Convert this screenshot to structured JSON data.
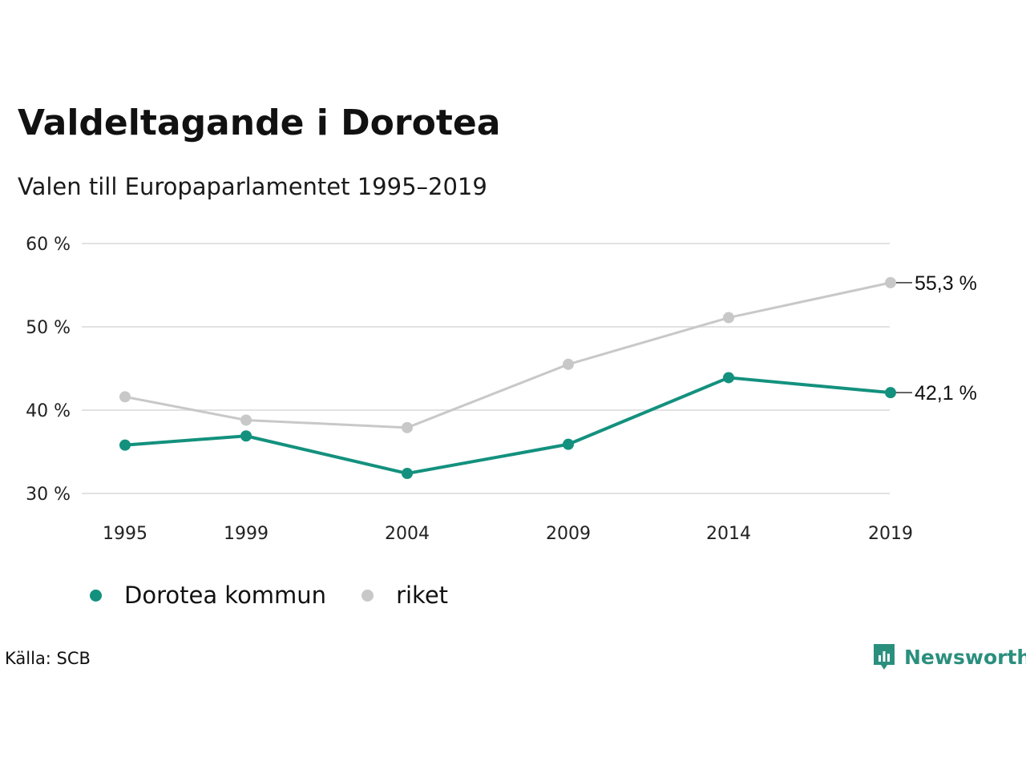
{
  "header": {
    "title": "Valdeltagande i Dorotea",
    "subtitle": "Valen till Europaparlamentet 1995–2019"
  },
  "footer": {
    "source": "Källa: SCB",
    "brand": "Newsworthy"
  },
  "colors": {
    "dorotea": "#13917e",
    "riket": "#c8c8c8",
    "grid": "#e2e2e2",
    "brand": "#2b8f7e"
  },
  "icons": {
    "brand_logo": "newsworthy-logo-icon"
  },
  "chart_data": {
    "type": "line",
    "x": [
      1995,
      1999,
      2004,
      2009,
      2014,
      2019
    ],
    "xticks": [
      "1995",
      "1999",
      "2004",
      "2009",
      "2014",
      "2019"
    ],
    "yticks": [
      "30 %",
      "40 %",
      "50 %",
      "60 %"
    ],
    "ylim": [
      30,
      60
    ],
    "grid": true,
    "legend_position": "bottom-left",
    "series": [
      {
        "name": "Dorotea kommun",
        "values": [
          35.8,
          36.9,
          32.4,
          35.9,
          43.9,
          42.1
        ],
        "end_label": "42,1 %"
      },
      {
        "name": "riket",
        "values": [
          41.6,
          38.8,
          37.9,
          45.5,
          51.1,
          55.3
        ],
        "end_label": "55,3 %"
      }
    ]
  }
}
